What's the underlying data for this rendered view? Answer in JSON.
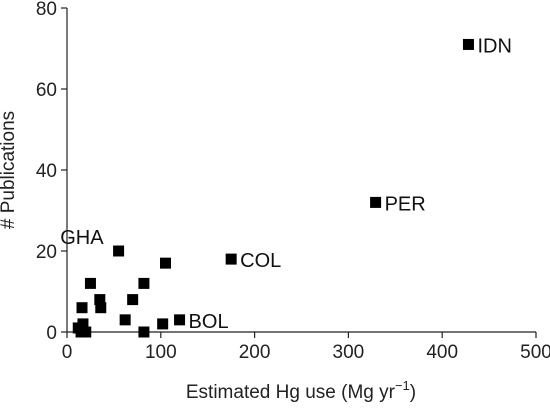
{
  "chart_data": {
    "type": "scatter",
    "title": "",
    "xlabel": "Estimated Hg use (Mg yr",
    "xlabel_sup": "−1",
    "xlabel_end": ")",
    "ylabel": "# Publications",
    "xlim": [
      0,
      500
    ],
    "ylim": [
      0,
      80
    ],
    "x_ticks": [
      0,
      100,
      200,
      300,
      400,
      500
    ],
    "y_ticks": [
      0,
      20,
      40,
      60,
      80
    ],
    "x_tick_labels": [
      "0",
      "100",
      "200",
      "300",
      "400",
      "500"
    ],
    "y_tick_labels": [
      "0",
      "20",
      "40",
      "60",
      "80"
    ],
    "grid": false,
    "marker": "square",
    "marker_color": "#000000",
    "points": [
      {
        "x": 428,
        "y": 71,
        "label": "IDN"
      },
      {
        "x": 329,
        "y": 32,
        "label": "PER"
      },
      {
        "x": 175,
        "y": 18,
        "label": "COL"
      },
      {
        "x": 55,
        "y": 20,
        "label": "GHA"
      },
      {
        "x": 120,
        "y": 3,
        "label": "BOL"
      },
      {
        "x": 105,
        "y": 17,
        "label": ""
      },
      {
        "x": 82,
        "y": 12,
        "label": ""
      },
      {
        "x": 25,
        "y": 12,
        "label": ""
      },
      {
        "x": 16,
        "y": 6,
        "label": ""
      },
      {
        "x": 35,
        "y": 8,
        "label": ""
      },
      {
        "x": 36,
        "y": 6,
        "label": ""
      },
      {
        "x": 70,
        "y": 8,
        "label": ""
      },
      {
        "x": 62,
        "y": 3,
        "label": ""
      },
      {
        "x": 12,
        "y": 1,
        "label": ""
      },
      {
        "x": 17,
        "y": 2,
        "label": ""
      },
      {
        "x": 20,
        "y": 0,
        "label": ""
      },
      {
        "x": 15,
        "y": 0,
        "label": ""
      },
      {
        "x": 82,
        "y": 0,
        "label": ""
      },
      {
        "x": 102,
        "y": 2,
        "label": ""
      }
    ]
  }
}
